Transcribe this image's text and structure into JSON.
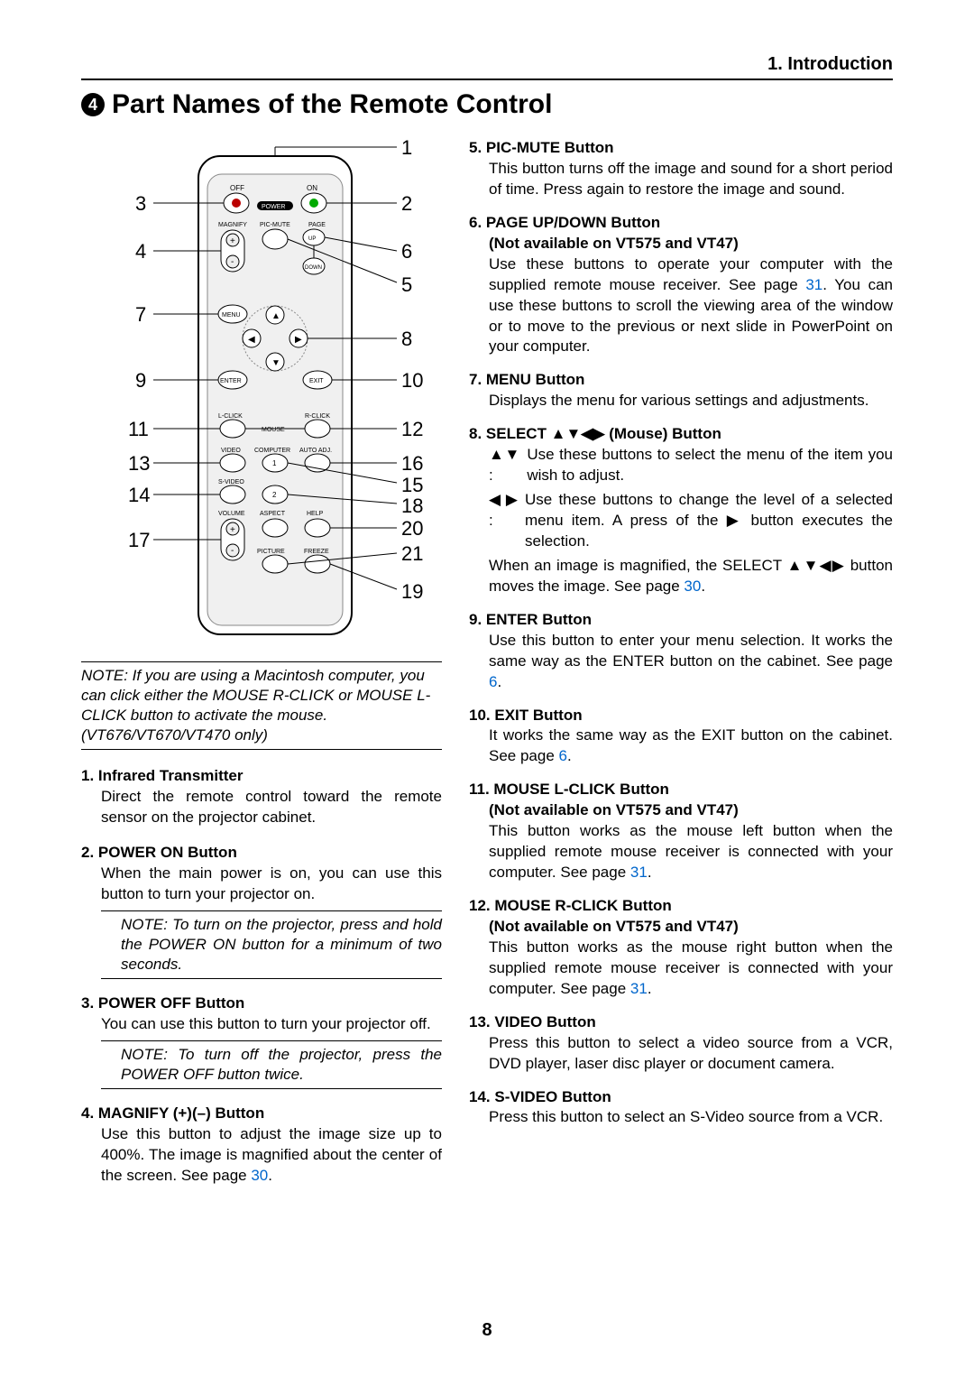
{
  "header": "1. Introduction",
  "section_number": "4",
  "title": "Part Names of the Remote Control",
  "page_number": "8",
  "remote": {
    "labels": {
      "off": "OFF",
      "on": "ON",
      "power": "POWER",
      "magnify": "MAGNIFY",
      "pic_mute": "PIC-MUTE",
      "page": "PAGE",
      "up": "UP",
      "down": "DOWN",
      "menu": "MENU",
      "enter": "ENTER",
      "exit": "EXIT",
      "lclick": "L-CLICK",
      "rclick": "R-CLICK",
      "mouse": "MOUSE",
      "video": "VIDEO",
      "computer": "COMPUTER",
      "autoadj": "AUTO ADJ.",
      "svideo": "S-VIDEO",
      "volume": "VOLUME",
      "aspect": "ASPECT",
      "help": "HELP",
      "picture": "PICTURE",
      "freeze": "FREEZE",
      "n1": "1",
      "n2": "2"
    },
    "callouts": {
      "c1": "1",
      "c2": "2",
      "c3": "3",
      "c4": "4",
      "c5": "5",
      "c6": "6",
      "c7": "7",
      "c8": "8",
      "c9": "9",
      "c10": "10",
      "c11": "11",
      "c12": "12",
      "c13": "13",
      "c14": "14",
      "c15": "15",
      "c16": "16",
      "c17": "17",
      "c18": "18",
      "c19": "19",
      "c20": "20",
      "c21": "21"
    }
  },
  "left_note": "NOTE: If you are using a Macintosh computer, you can click either the MOUSE R-CLICK or MOUSE L-CLICK button to activate the mouse. (VT676/VT670/VT470 only)",
  "left_items": [
    {
      "num": "1.",
      "title": "Infrared Transmitter",
      "body": "Direct the remote control toward the remote sensor on the projector cabinet."
    },
    {
      "num": "2.",
      "title": "POWER ON Button",
      "body": "When the main power is on, you can use this button to turn your projector on.",
      "note": "NOTE: To turn on the projector, press and hold the POWER ON button for a minimum of two seconds."
    },
    {
      "num": "3.",
      "title": "POWER OFF Button",
      "body": "You can use this button to turn your projector off.",
      "note": "NOTE: To turn off the projector, press the POWER OFF button twice."
    },
    {
      "num": "4.",
      "title": "MAGNIFY (+)(–) Button",
      "body": "Use this button to adjust the image size up to 400%. The image is magnified about the center of the screen. See page ",
      "page": "30",
      "tail": "."
    }
  ],
  "right_items": [
    {
      "num": "5.",
      "title": "PIC-MUTE Button",
      "body": "This button turns off the image and sound for a short period of time. Press again to restore the image and sound."
    },
    {
      "num": "6.",
      "title": "PAGE UP/DOWN Button",
      "subtitle": "(Not available on VT575 and VT47)",
      "body": "Use these buttons to operate your computer with the supplied remote mouse receiver. See page ",
      "page": "31",
      "tail": ". You can use these buttons to scroll the viewing area of the window or to move to the previous or next slide in PowerPoint on your computer."
    },
    {
      "num": "7.",
      "title": "MENU Button",
      "body": "Displays the menu for various settings and adjustments."
    },
    {
      "num": "8.",
      "title": "SELECT ▲▼◀▶ (Mouse) Button",
      "select": true,
      "sub": [
        {
          "sym": "▲▼ :",
          "txt": "Use these buttons to select the menu of the item you wish to adjust."
        },
        {
          "sym": "◀▶ :",
          "txt": "Use these buttons to change the level of a selected menu item. A press of the ▶ button executes the selection."
        }
      ],
      "after": "When an image is magnified, the SELECT ▲▼◀▶ button moves the image. See page ",
      "page": "30",
      "tail": "."
    },
    {
      "num": "9.",
      "title": "ENTER Button",
      "body": "Use this button to enter your menu selection. It works the same way as the ENTER button on the cabinet. See page ",
      "page": "6",
      "tail": "."
    },
    {
      "num": "10.",
      "title": "EXIT Button",
      "body": "It works the same way as the EXIT button on the cabinet. See page ",
      "page": "6",
      "tail": "."
    },
    {
      "num": "11.",
      "title": "MOUSE L-CLICK Button",
      "subtitle": "(Not available on VT575 and VT47)",
      "body": "This button works as the mouse left button when the supplied remote mouse receiver is connected with your computer. See page ",
      "page": "31",
      "tail": "."
    },
    {
      "num": "12.",
      "title": "MOUSE R-CLICK Button",
      "subtitle": "(Not available on VT575 and VT47)",
      "body": "This button works as the mouse right button when the supplied remote mouse receiver is connected with your computer. See page ",
      "page": "31",
      "tail": "."
    },
    {
      "num": "13.",
      "title": "VIDEO Button",
      "body": "Press this button to select a video source from a VCR, DVD player, laser disc player or document camera."
    },
    {
      "num": "14.",
      "title": "S-VIDEO Button",
      "body": "Press this button to select an S-Video source from a VCR."
    }
  ]
}
